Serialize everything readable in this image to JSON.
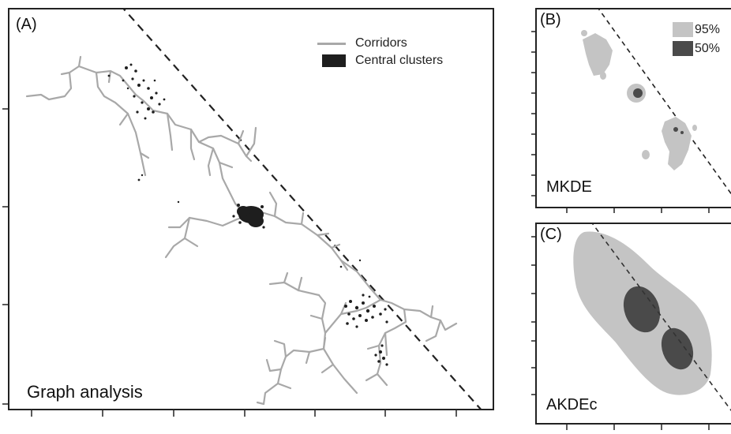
{
  "panel_a": {
    "label": "(A)",
    "title": "Graph analysis",
    "legend": [
      {
        "label": "Corridors",
        "kind": "line"
      },
      {
        "label": "Central clusters",
        "kind": "box"
      }
    ]
  },
  "panel_b": {
    "label": "(B)",
    "title": "MKDE",
    "legend": [
      {
        "label": "95%",
        "color": "#c4c4c4"
      },
      {
        "label": "50%",
        "color": "#4a4a4a"
      }
    ]
  },
  "panel_c": {
    "label": "(C)",
    "title": "AKDEc"
  },
  "colors": {
    "corridor": "#a8a8a8",
    "cluster": "#1e1e1e",
    "contour95": "#c4c4c4",
    "contour50": "#4a4a4a",
    "dashed_line": "#222222"
  }
}
